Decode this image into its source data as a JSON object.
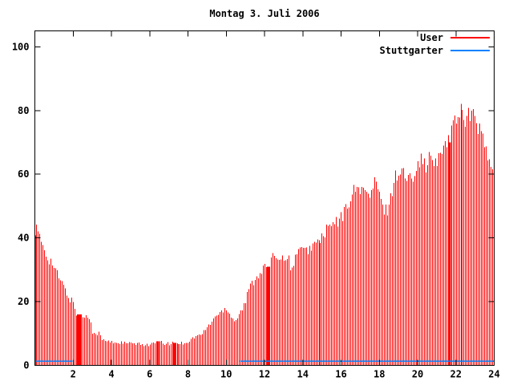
{
  "window": {
    "title": "Montag 3. Juli 2006"
  },
  "legend": {
    "position": "top-right",
    "entries": [
      {
        "label": "User",
        "color": "#ff0000"
      },
      {
        "label": "Stuttgarter",
        "color": "#0080ff"
      }
    ]
  },
  "colors": {
    "background": "#ffffff",
    "axis": "#000000",
    "bars": "#ff0000",
    "line": "#0080ff"
  },
  "chart_data": {
    "type": "bar",
    "subtype": "gnuplot-impulses",
    "title": "Montag 3. Juli 2006",
    "xlabel": "",
    "ylabel": "",
    "xlim": [
      0,
      24
    ],
    "ylim": [
      0,
      105
    ],
    "x_ticks": [
      2,
      4,
      6,
      8,
      10,
      12,
      14,
      16,
      18,
      20,
      22,
      24
    ],
    "y_ticks": [
      0,
      20,
      40,
      60,
      80,
      100
    ],
    "grid": false,
    "legend_position": "top-right-inside",
    "series": [
      {
        "name": "User",
        "style": "impulses",
        "color": "#ff0000",
        "sample_interval_hours": 0.0833,
        "anchors": [
          [
            0.0,
            41.5
          ],
          [
            0.08,
            43
          ],
          [
            0.2,
            40.5
          ],
          [
            0.35,
            38.5
          ],
          [
            0.5,
            36.5
          ],
          [
            0.65,
            34
          ],
          [
            0.8,
            33
          ],
          [
            0.95,
            31.5
          ],
          [
            1.1,
            29.5
          ],
          [
            1.25,
            27.5
          ],
          [
            1.4,
            26
          ],
          [
            1.55,
            24
          ],
          [
            1.7,
            22
          ],
          [
            1.85,
            20.5
          ],
          [
            2.0,
            20
          ],
          [
            2.1,
            17
          ],
          [
            2.2,
            16
          ],
          [
            2.5,
            15.5
          ],
          [
            2.9,
            15
          ],
          [
            3.0,
            10.5
          ],
          [
            3.15,
            9.5
          ],
          [
            3.3,
            10.5
          ],
          [
            3.5,
            8
          ],
          [
            3.8,
            7.5
          ],
          [
            4.2,
            7.2
          ],
          [
            4.6,
            7
          ],
          [
            5.0,
            6.8
          ],
          [
            5.5,
            6.6
          ],
          [
            6.0,
            6.5
          ],
          [
            6.45,
            7.5
          ],
          [
            6.7,
            6.8
          ],
          [
            7.0,
            6.8
          ],
          [
            7.3,
            7
          ],
          [
            7.6,
            6.9
          ],
          [
            7.9,
            7.2
          ],
          [
            8.1,
            7.8
          ],
          [
            8.35,
            9
          ],
          [
            8.55,
            9.3
          ],
          [
            8.75,
            10
          ],
          [
            8.95,
            11.5
          ],
          [
            9.15,
            13
          ],
          [
            9.35,
            14.8
          ],
          [
            9.55,
            16
          ],
          [
            9.75,
            16.8
          ],
          [
            9.95,
            18.5
          ],
          [
            10.1,
            17
          ],
          [
            10.3,
            14.8
          ],
          [
            10.5,
            14.3
          ],
          [
            10.65,
            16
          ],
          [
            10.85,
            18
          ],
          [
            11.0,
            20
          ],
          [
            11.15,
            24
          ],
          [
            11.35,
            26
          ],
          [
            11.55,
            27.5
          ],
          [
            11.75,
            29.5
          ],
          [
            11.95,
            30.5
          ],
          [
            12.1,
            31.5
          ],
          [
            12.25,
            31
          ],
          [
            12.4,
            33.5
          ],
          [
            12.55,
            35.3
          ],
          [
            12.7,
            34
          ],
          [
            12.85,
            33.5
          ],
          [
            13.0,
            34.3
          ],
          [
            13.15,
            34.8
          ],
          [
            13.35,
            31
          ],
          [
            13.5,
            30.8
          ],
          [
            13.65,
            36.3
          ],
          [
            13.8,
            37
          ],
          [
            14.0,
            35.5
          ],
          [
            14.2,
            35.8
          ],
          [
            14.4,
            37.5
          ],
          [
            14.6,
            38
          ],
          [
            14.8,
            38.7
          ],
          [
            15.0,
            40.5
          ],
          [
            15.2,
            41.5
          ],
          [
            15.35,
            44
          ],
          [
            15.5,
            43.5
          ],
          [
            15.7,
            44.5
          ],
          [
            15.9,
            45.5
          ],
          [
            16.1,
            47
          ],
          [
            16.3,
            50
          ],
          [
            16.5,
            53.5
          ],
          [
            16.7,
            54.5
          ],
          [
            16.9,
            55.5
          ],
          [
            17.1,
            56.5
          ],
          [
            17.3,
            53.5
          ],
          [
            17.45,
            52.5
          ],
          [
            17.6,
            55
          ],
          [
            17.75,
            57.5
          ],
          [
            17.9,
            56
          ],
          [
            18.05,
            51
          ],
          [
            18.2,
            49.5
          ],
          [
            18.35,
            48.5
          ],
          [
            18.5,
            50.5
          ],
          [
            18.65,
            55
          ],
          [
            18.8,
            59.5
          ],
          [
            19.0,
            60.5
          ],
          [
            19.15,
            61.5
          ],
          [
            19.3,
            59.5
          ],
          [
            19.5,
            58
          ],
          [
            19.7,
            59.5
          ],
          [
            19.9,
            63.5
          ],
          [
            20.05,
            65
          ],
          [
            20.2,
            64
          ],
          [
            20.4,
            63
          ],
          [
            20.55,
            64
          ],
          [
            20.7,
            66
          ],
          [
            20.85,
            62.5
          ],
          [
            21.0,
            63.5
          ],
          [
            21.15,
            65.5
          ],
          [
            21.3,
            68.5
          ],
          [
            21.45,
            72
          ],
          [
            21.6,
            70
          ],
          [
            21.75,
            75
          ],
          [
            21.9,
            77
          ],
          [
            22.05,
            79
          ],
          [
            22.2,
            80.5
          ],
          [
            22.35,
            80
          ],
          [
            22.5,
            78
          ],
          [
            22.65,
            79
          ],
          [
            22.8,
            78
          ],
          [
            23.0,
            77.5
          ],
          [
            23.2,
            75
          ],
          [
            23.35,
            71.5
          ],
          [
            23.55,
            67.5
          ],
          [
            23.75,
            63.5
          ],
          [
            23.95,
            59.5
          ]
        ],
        "solid_blocks": [
          {
            "x0": 2.2,
            "x1": 2.42,
            "h": 16
          },
          {
            "x0": 6.38,
            "x1": 6.5,
            "h": 7.5
          },
          {
            "x0": 7.22,
            "x1": 7.36,
            "h": 7
          },
          {
            "x0": 12.13,
            "x1": 12.25,
            "h": 31
          },
          {
            "x0": 21.6,
            "x1": 21.73,
            "h": 70
          }
        ]
      },
      {
        "name": "Stuttgarter",
        "style": "line",
        "color": "#0080ff",
        "value": 1.3,
        "segments": [
          {
            "x0": 0.0,
            "x1": 1.97
          },
          {
            "x0": 10.73,
            "x1": 24.0
          }
        ]
      }
    ]
  }
}
